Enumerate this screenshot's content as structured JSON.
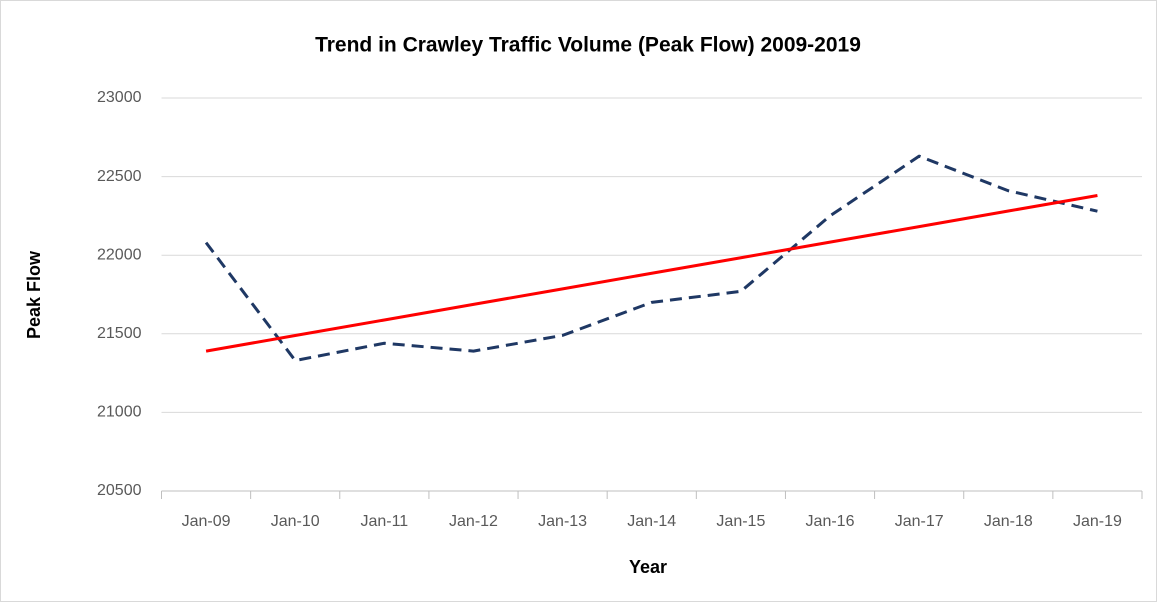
{
  "chart_data": {
    "type": "line",
    "title": "Trend in Crawley Traffic Volume (Peak Flow) 2009-2019",
    "xlabel": "Year",
    "ylabel": "Peak Flow",
    "categories": [
      "Jan-09",
      "Jan-10",
      "Jan-11",
      "Jan-12",
      "Jan-13",
      "Jan-14",
      "Jan-15",
      "Jan-16",
      "Jan-17",
      "Jan-18",
      "Jan-19"
    ],
    "series": [
      {
        "color": "#1f3864",
        "dashed": true,
        "values": [
          22080,
          21330,
          21440,
          21390,
          21490,
          21700,
          21770,
          22250,
          22630,
          22410,
          22280
        ]
      },
      {
        "color": "#ff0000",
        "dashed": false,
        "values": [
          21390,
          21489,
          21588,
          21687,
          21786,
          21885,
          21984,
          22083,
          22182,
          22281,
          22380
        ]
      }
    ],
    "ylim": [
      20500,
      23000
    ],
    "yticks": [
      20500,
      21000,
      21500,
      22000,
      22500,
      23000
    ],
    "grid": true
  }
}
